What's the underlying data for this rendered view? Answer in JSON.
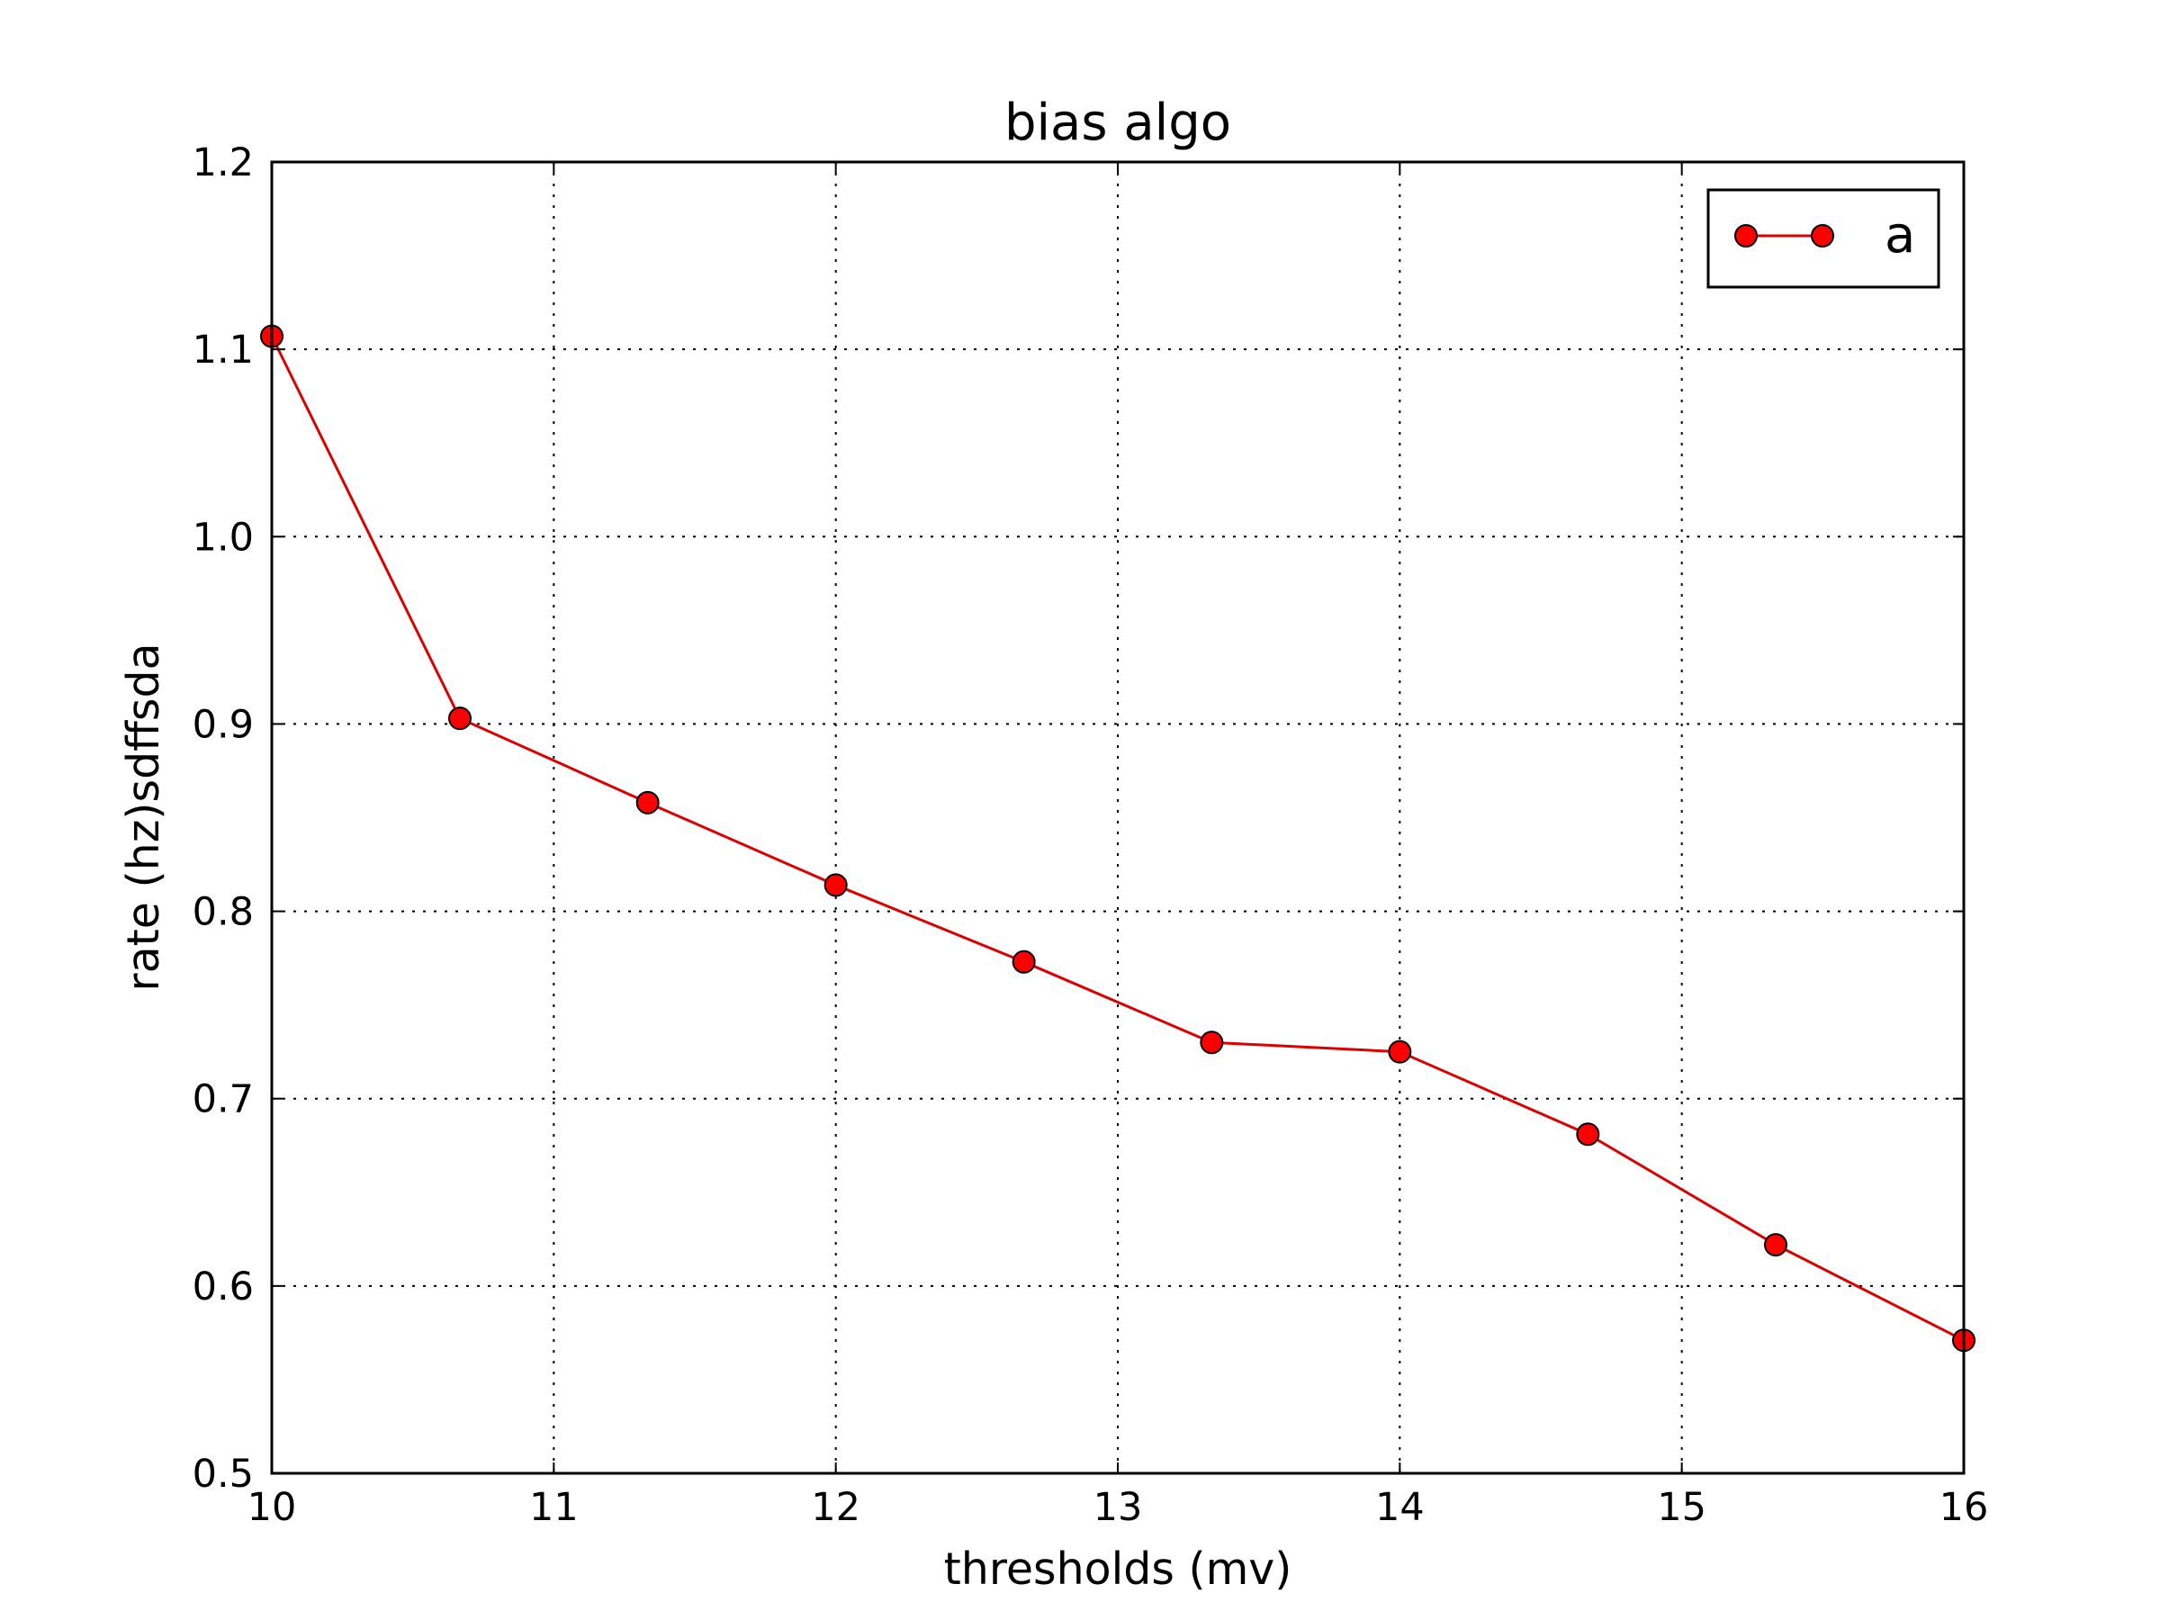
{
  "chart_data": {
    "type": "line",
    "title": "bias algo",
    "xlabel": "thresholds (mv)",
    "ylabel": "rate (hz)sdffsda",
    "xlim": [
      10,
      16
    ],
    "ylim": [
      0.5,
      1.2
    ],
    "xticks": [
      10,
      11,
      12,
      13,
      14,
      15,
      16
    ],
    "yticks": [
      0.5,
      0.6,
      0.7,
      0.8,
      0.9,
      1.0,
      1.1,
      1.2
    ],
    "xtick_labels": [
      "10",
      "11",
      "12",
      "13",
      "14",
      "15",
      "16"
    ],
    "ytick_labels": [
      "0.5",
      "0.6",
      "0.7",
      "0.8",
      "0.9",
      "1.0",
      "1.1",
      "1.2"
    ],
    "grid": true,
    "legend_position": "top-right",
    "series": [
      {
        "name": "a",
        "color": "#ff0000",
        "line_color": "#dd0000",
        "marker": "circle",
        "x": [
          10.0,
          10.667,
          11.333,
          12.0,
          12.667,
          13.333,
          14.0,
          14.667,
          15.333,
          16.0
        ],
        "y": [
          1.107,
          0.903,
          0.858,
          0.814,
          0.773,
          0.73,
          0.725,
          0.681,
          0.622,
          0.571
        ]
      }
    ]
  }
}
